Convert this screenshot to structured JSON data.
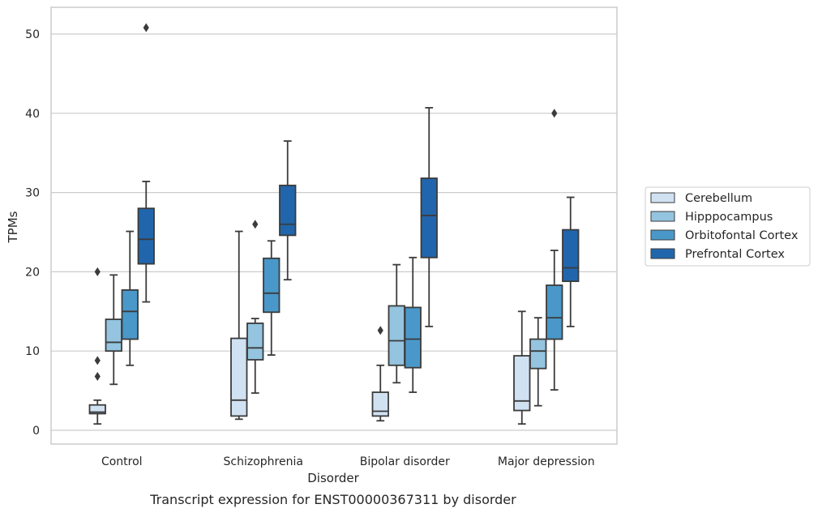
{
  "chart_data": {
    "type": "box",
    "title": "",
    "caption": "Transcript expression for ENST00000367311 by disorder",
    "xlabel": "Disorder",
    "ylabel": "TPMs",
    "ylim": [
      -1.6,
      53.4
    ],
    "yticks": [
      0,
      10,
      20,
      30,
      40,
      50
    ],
    "grid": "horizontal",
    "legend_position": "right",
    "categories": [
      "Control",
      "Schizophrenia",
      "Bipolar disorder",
      "Major depression"
    ],
    "series": [
      {
        "name": "Cerebellum",
        "color": "#d0e1f2",
        "boxes": [
          {
            "whisker_low": 0.8,
            "q1": 2.1,
            "median": 2.3,
            "q3": 3.2,
            "whisker_high": 3.8,
            "outliers": [
              6.8,
              8.8,
              20.0
            ]
          },
          {
            "whisker_low": 1.4,
            "q1": 1.8,
            "median": 3.8,
            "q3": 11.6,
            "whisker_high": 25.1,
            "outliers": []
          },
          {
            "whisker_low": 1.2,
            "q1": 1.8,
            "median": 2.4,
            "q3": 4.8,
            "whisker_high": 8.2,
            "outliers": [
              12.6
            ]
          },
          {
            "whisker_low": 0.8,
            "q1": 2.5,
            "median": 3.7,
            "q3": 9.4,
            "whisker_high": 15.0,
            "outliers": []
          }
        ]
      },
      {
        "name": "Hipppocampus",
        "color": "#94c4df",
        "boxes": [
          {
            "whisker_low": 5.8,
            "q1": 10.0,
            "median": 11.1,
            "q3": 14.0,
            "whisker_high": 19.6,
            "outliers": []
          },
          {
            "whisker_low": 4.7,
            "q1": 8.9,
            "median": 10.4,
            "q3": 13.5,
            "whisker_high": 14.1,
            "outliers": [
              26.0
            ]
          },
          {
            "whisker_low": 6.0,
            "q1": 8.2,
            "median": 11.3,
            "q3": 15.7,
            "whisker_high": 20.9,
            "outliers": []
          },
          {
            "whisker_low": 3.1,
            "q1": 7.8,
            "median": 10.0,
            "q3": 11.5,
            "whisker_high": 14.2,
            "outliers": []
          }
        ]
      },
      {
        "name": "Orbitofontal Cortex",
        "color": "#4a98c9",
        "boxes": [
          {
            "whisker_low": 8.2,
            "q1": 11.5,
            "median": 15.0,
            "q3": 17.7,
            "whisker_high": 25.1,
            "outliers": []
          },
          {
            "whisker_low": 9.5,
            "q1": 14.9,
            "median": 17.3,
            "q3": 21.7,
            "whisker_high": 23.9,
            "outliers": []
          },
          {
            "whisker_low": 4.8,
            "q1": 7.9,
            "median": 11.5,
            "q3": 15.5,
            "whisker_high": 21.8,
            "outliers": []
          },
          {
            "whisker_low": 5.1,
            "q1": 11.5,
            "median": 14.2,
            "q3": 18.3,
            "whisker_high": 22.7,
            "outliers": [
              40.0
            ]
          }
        ]
      },
      {
        "name": "Prefrontal Cortex",
        "color": "#2166ac",
        "boxes": [
          {
            "whisker_low": 16.2,
            "q1": 21.0,
            "median": 24.1,
            "q3": 28.0,
            "whisker_high": 31.4,
            "outliers": [
              50.8
            ]
          },
          {
            "whisker_low": 19.0,
            "q1": 24.6,
            "median": 26.0,
            "q3": 30.9,
            "whisker_high": 36.5,
            "outliers": []
          },
          {
            "whisker_low": 13.1,
            "q1": 21.8,
            "median": 27.1,
            "q3": 31.8,
            "whisker_high": 40.7,
            "outliers": []
          },
          {
            "whisker_low": 13.1,
            "q1": 18.8,
            "median": 20.5,
            "q3": 25.3,
            "whisker_high": 29.4,
            "outliers": []
          }
        ]
      }
    ]
  },
  "colors": {
    "box_edge": "#3b3b3b",
    "grid": "#cccccc",
    "frame": "#cccccc",
    "background": "#ffffff"
  }
}
